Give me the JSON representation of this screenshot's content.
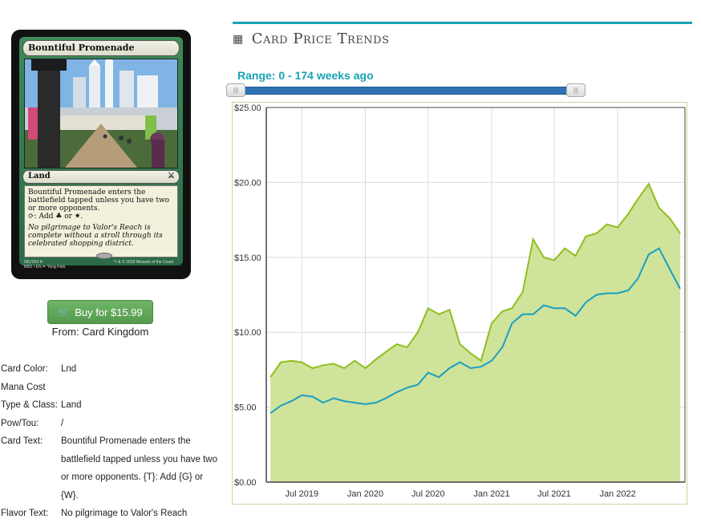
{
  "card": {
    "name": "Bountiful Promenade",
    "type_line": "Land",
    "rules_line1": "Bountiful Promenade enters the battlefield tapped unless you have two or more opponents.",
    "rules_line2": ": Add ♣ or ✷.",
    "flavor": "No pilgrimage to Valor's Reach is complete without a stroll through its celebrated shopping district.",
    "footer_left": "081/254 R",
    "footer_left2": "BBD • EN  ✒ Yong Park",
    "footer_right": "™ & © 2018 Wizards of the Coast"
  },
  "buy": {
    "label": "Buy for $15.99",
    "from": "From: Card Kingdom"
  },
  "details": {
    "card_color_label": "Card Color:",
    "card_color": "Lnd",
    "mana_cost_label": "Mana Cost",
    "mana_cost": "",
    "type_label": "Type & Class:",
    "type": "Land",
    "pt_label": "Pow/Tou:",
    "pt": "/",
    "text_label": "Card Text:",
    "text": "Bountiful Promenade enters the battlefield tapped unless you have two or more opponents. {T}: Add {G} or {W}.",
    "flavor_label": "Flavor Text:",
    "flavor": "No pilgrimage to Valor's Reach"
  },
  "header": {
    "title": "Card Price Trends",
    "range": "Range: 0 - 174 weeks ago"
  },
  "colors": {
    "accent": "#1aa3b5",
    "green_line": "#8fbf1f",
    "green_fill": "#cfe39b",
    "blue_line": "#1a9fc0",
    "button": "#5fa957"
  },
  "chart_data": {
    "type": "line",
    "title": "",
    "xlabel": "",
    "ylabel": "",
    "ylim": [
      0,
      25
    ],
    "yticks": [
      "$0.00",
      "$5.00",
      "$10.00",
      "$15.00",
      "$20.00",
      "$25.00"
    ],
    "xticks": [
      "Jul 2019",
      "Jan 2020",
      "Jul 2020",
      "Jan 2021",
      "Jul 2021",
      "Jan 2022"
    ],
    "x": [
      "2019-04-01",
      "2019-05-01",
      "2019-06-01",
      "2019-07-01",
      "2019-08-01",
      "2019-09-01",
      "2019-10-01",
      "2019-11-01",
      "2019-12-01",
      "2020-01-01",
      "2020-02-01",
      "2020-03-01",
      "2020-04-01",
      "2020-05-01",
      "2020-06-01",
      "2020-07-01",
      "2020-08-01",
      "2020-09-01",
      "2020-10-01",
      "2020-11-01",
      "2020-12-01",
      "2021-01-01",
      "2021-02-01",
      "2021-03-01",
      "2021-04-01",
      "2021-05-01",
      "2021-06-01",
      "2021-07-01",
      "2021-08-01",
      "2021-09-01",
      "2021-10-01",
      "2021-11-01",
      "2021-12-01",
      "2022-01-01",
      "2022-02-01",
      "2022-03-01",
      "2022-04-01",
      "2022-05-01",
      "2022-06-01",
      "2022-07-01"
    ],
    "series": [
      {
        "values": [
          7.0,
          8.0,
          8.1,
          8.0,
          7.6,
          7.8,
          7.9,
          7.6,
          8.1,
          7.6,
          8.2,
          8.7,
          9.2,
          9.0,
          10.0,
          11.6,
          11.2,
          11.5,
          9.2,
          8.6,
          8.1,
          10.6,
          11.4,
          11.6,
          12.7,
          16.2,
          15.0,
          14.8,
          15.6,
          15.1,
          16.4,
          16.6,
          17.2,
          17.0,
          17.9,
          18.9,
          19.9,
          18.3,
          17.6,
          16.6
        ]
      },
      {
        "values": [
          4.6,
          5.1,
          5.4,
          5.8,
          5.7,
          5.3,
          5.6,
          5.4,
          5.3,
          5.2,
          5.3,
          5.6,
          6.0,
          6.3,
          6.5,
          7.3,
          7.0,
          7.6,
          8.0,
          7.6,
          7.7,
          8.1,
          9.0,
          10.6,
          11.2,
          11.2,
          11.8,
          11.6,
          11.6,
          11.1,
          12.0,
          12.5,
          12.6,
          12.6,
          12.8,
          13.6,
          15.2,
          15.6,
          14.2,
          12.9
        ]
      }
    ]
  }
}
